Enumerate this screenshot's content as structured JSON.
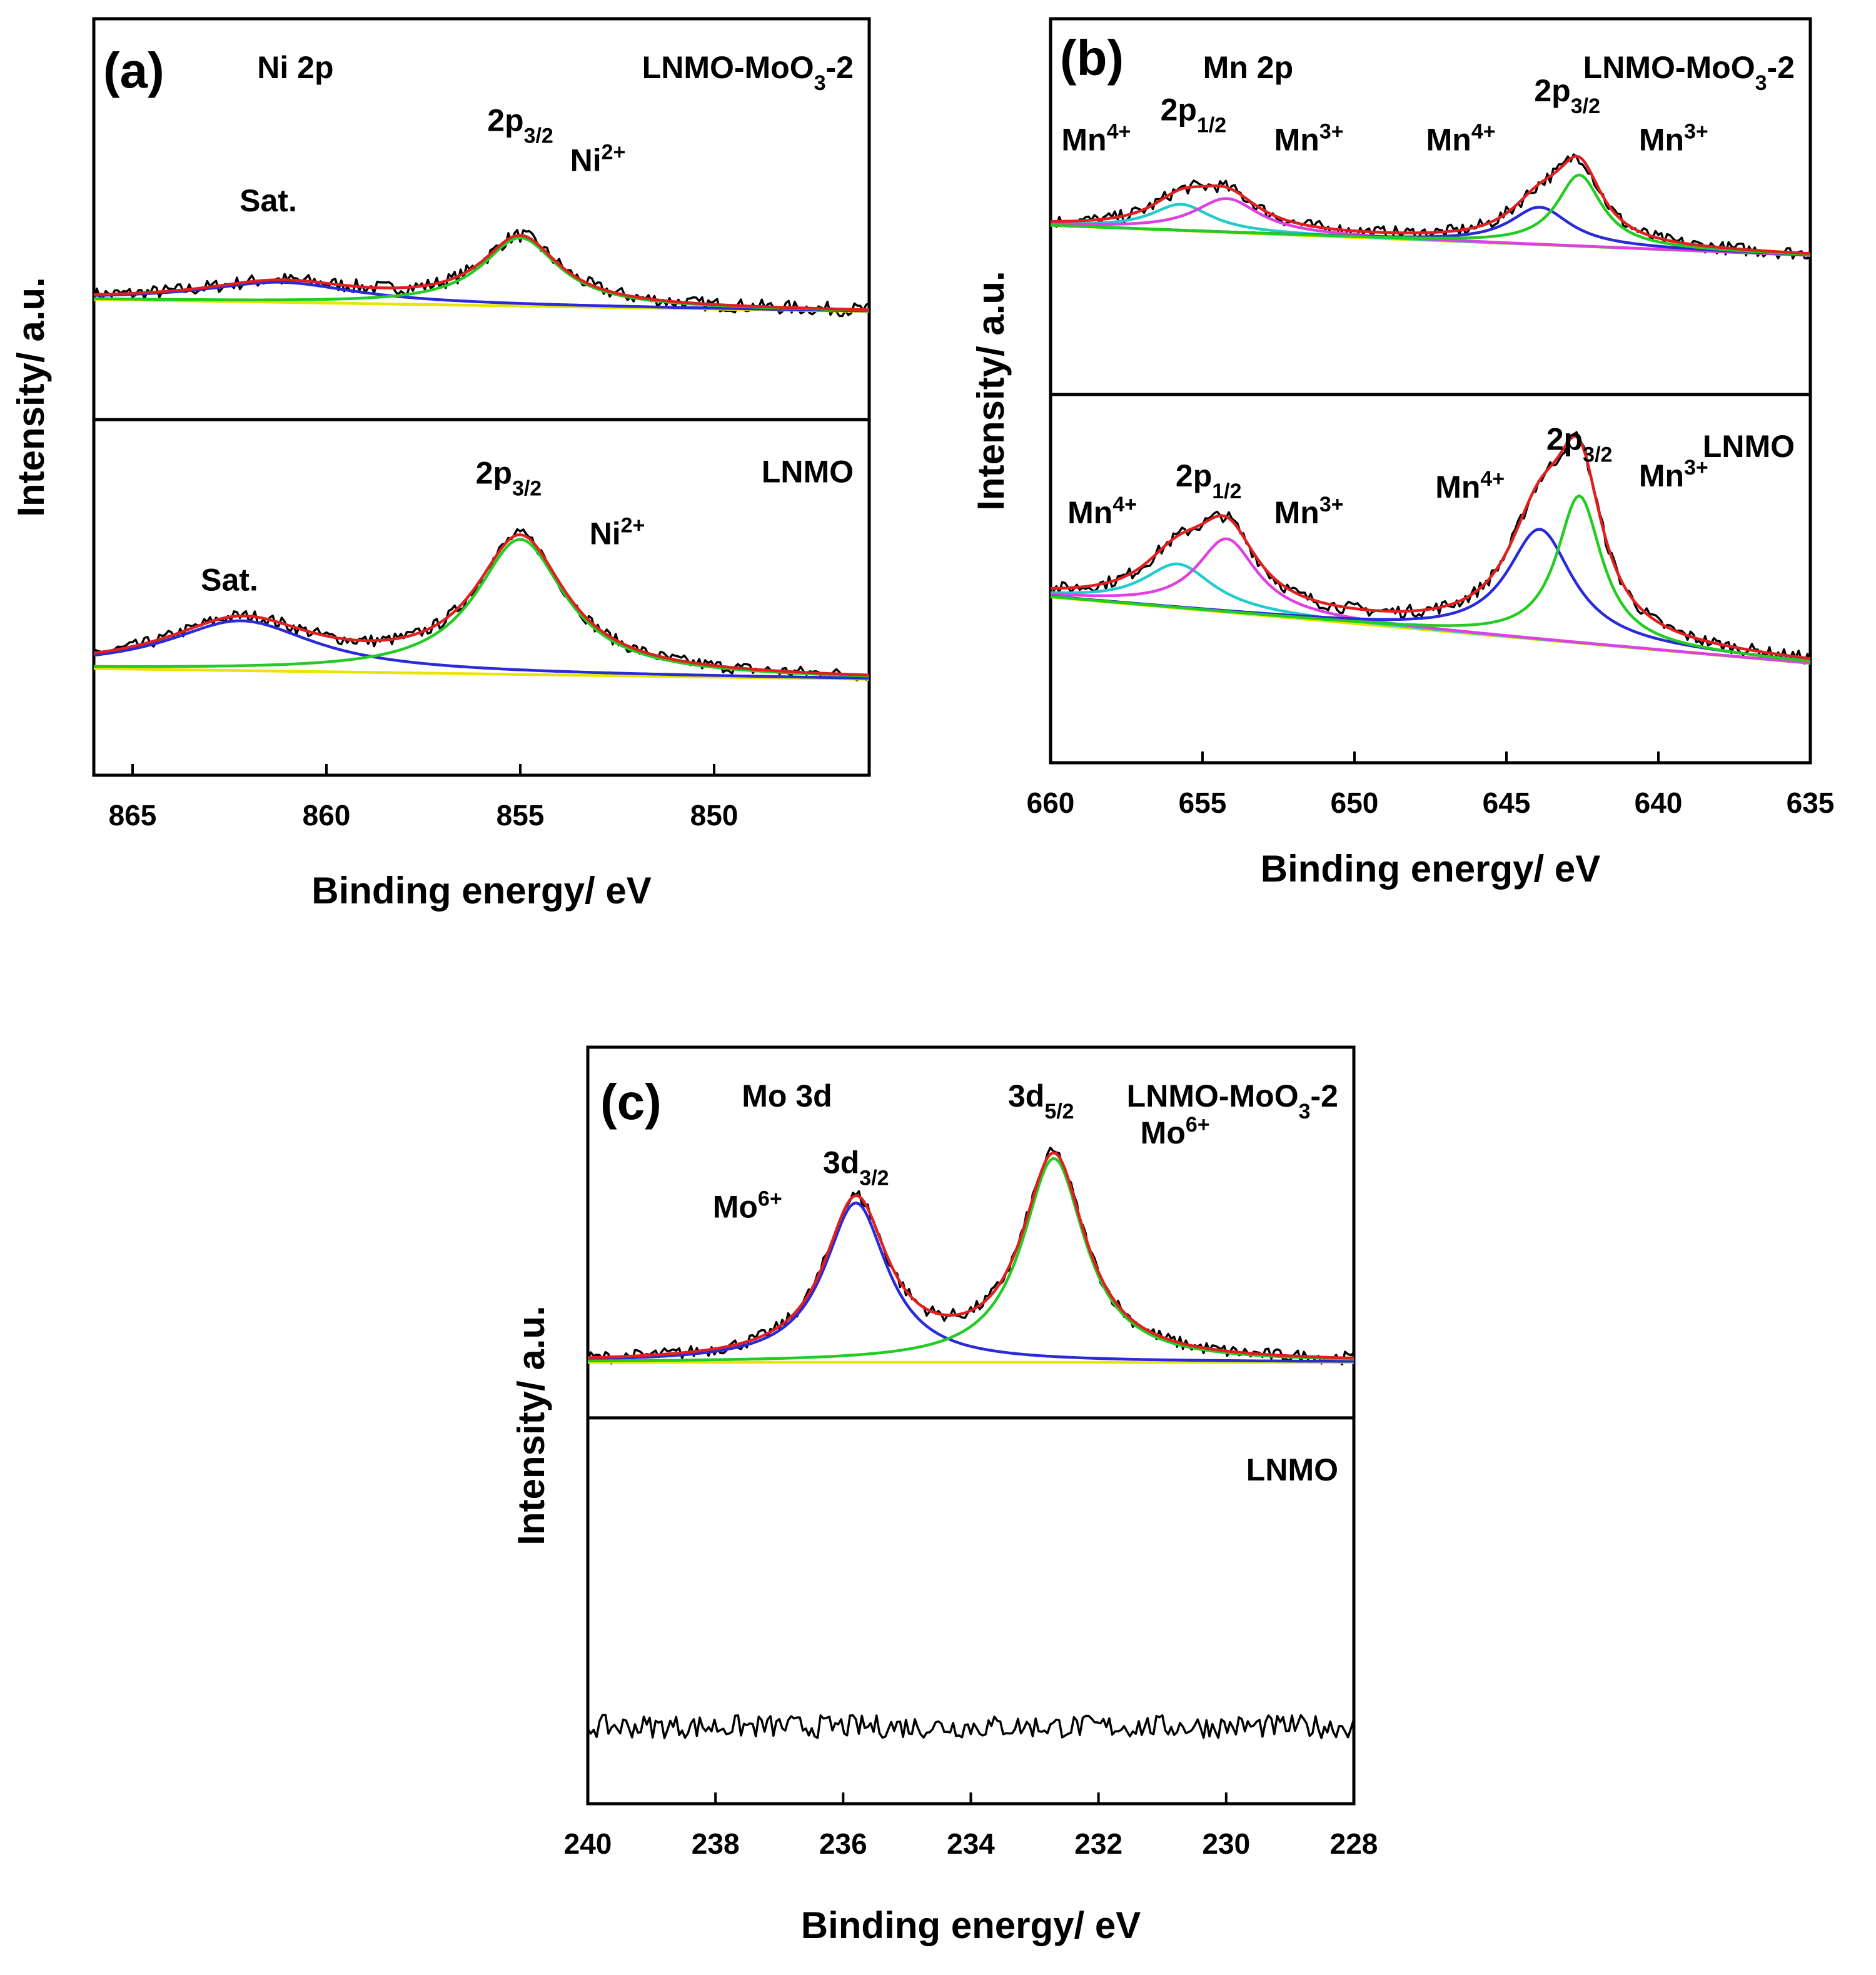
{
  "chart_data": [
    {
      "panel": "(a)",
      "type": "line",
      "title": "Ni 2p",
      "xlabel": "Binding energy/ eV",
      "ylabel": "Intensity/ a.u.",
      "xlim": [
        866,
        846
      ],
      "xticks": [
        865,
        860,
        855,
        850
      ],
      "tick_labels": [
        "865",
        "860",
        "855",
        "850"
      ],
      "subplots": [
        {
          "sample": "LNMO-MoO",
          "sample_sub": "3",
          "sample_suffix": "-2",
          "labels": [
            {
              "text": "Sat.",
              "x": 861.5,
              "y": 0.52
            },
            {
              "text": "2p",
              "sub": "3/2",
              "x": 855,
              "y": 0.72
            },
            {
              "text": "Ni",
              "sup": "2+",
              "x": 853,
              "y": 0.62
            }
          ],
          "background": {
            "start": 0.3,
            "end": 0.27
          },
          "peaks": [
            {
              "name": "Sat.",
              "center": 861.2,
              "height": 0.05,
              "width": 2.4,
              "color": "#2a2ad8"
            },
            {
              "name": "Ni2+",
              "center": 855.0,
              "height": 0.17,
              "width": 1.2,
              "color": "#22cc22"
            }
          ]
        },
        {
          "sample": "LNMO",
          "labels": [
            {
              "text": "Sat.",
              "x": 862.5,
              "y": 0.52
            },
            {
              "text": "2p",
              "sub": "3/2",
              "x": 855.3,
              "y": 0.82
            },
            {
              "text": "Ni",
              "sup": "2+",
              "x": 852.5,
              "y": 0.65
            }
          ],
          "background": {
            "start": 0.3,
            "end": 0.27
          },
          "peaks": [
            {
              "name": "Sat.",
              "center": 862.2,
              "height": 0.14,
              "width": 2.3,
              "color": "#2a2ad8"
            },
            {
              "name": "Ni2+",
              "center": 855.0,
              "height": 0.38,
              "width": 1.4,
              "color": "#22cc22"
            }
          ]
        }
      ]
    },
    {
      "panel": "(b)",
      "type": "line",
      "title": "Mn 2p",
      "xlabel": "Binding energy/ eV",
      "ylabel": "Intensity/ a.u.",
      "xlim": [
        660,
        635
      ],
      "xticks": [
        660,
        655,
        650,
        645,
        640,
        635
      ],
      "tick_labels": [
        "660",
        "655",
        "650",
        "645",
        "640",
        "635"
      ],
      "subplots": [
        {
          "sample": "LNMO-MoO",
          "sample_sub": "3",
          "sample_suffix": "-2",
          "labels": [
            {
              "text": "Mn",
              "sup": "4+",
              "x": 658.5,
              "y": 0.65
            },
            {
              "text": "2p",
              "sub": "1/2",
              "x": 655.3,
              "y": 0.73
            },
            {
              "text": "Mn",
              "sup": "3+",
              "x": 651.5,
              "y": 0.65
            },
            {
              "text": "Mn",
              "sup": "4+",
              "x": 646.5,
              "y": 0.65
            },
            {
              "text": "2p",
              "sub": "3/2",
              "x": 643,
              "y": 0.78
            },
            {
              "text": "Mn",
              "sup": "3+",
              "x": 639.5,
              "y": 0.65
            }
          ],
          "background": {
            "start": 0.45,
            "end": 0.37
          },
          "peaks": [
            {
              "name": "Mn4+ 2p1/2",
              "center": 655.7,
              "height": 0.07,
              "width": 1.2,
              "color": "#22cccc"
            },
            {
              "name": "Mn3+ 2p1/2",
              "center": 654.2,
              "height": 0.09,
              "width": 1.3,
              "color": "#e040e0"
            },
            {
              "name": "Mn4+ 2p3/2",
              "center": 643.9,
              "height": 0.1,
              "width": 1.2,
              "color": "#2a2ad8"
            },
            {
              "name": "Mn3+ 2p3/2",
              "center": 642.6,
              "height": 0.19,
              "width": 0.9,
              "color": "#22cc22"
            }
          ]
        },
        {
          "sample": "LNMO",
          "labels": [
            {
              "text": "Mn",
              "sup": "4+",
              "x": 658.3,
              "y": 0.65
            },
            {
              "text": "2p",
              "sub": "1/2",
              "x": 654.8,
              "y": 0.75
            },
            {
              "text": "Mn",
              "sup": "3+",
              "x": 651.5,
              "y": 0.65
            },
            {
              "text": "Mn",
              "sup": "4+",
              "x": 646.2,
              "y": 0.72
            },
            {
              "text": "2p",
              "sub": "3/2",
              "x": 642.6,
              "y": 0.85
            },
            {
              "text": "Mn",
              "sup": "3+",
              "x": 639.5,
              "y": 0.75
            }
          ],
          "background": {
            "start": 0.45,
            "end": 0.27
          },
          "peaks": [
            {
              "name": "Mn4+ 2p1/2",
              "center": 655.8,
              "height": 0.12,
              "width": 1.4,
              "color": "#22cccc"
            },
            {
              "name": "Mn3+ 2p1/2",
              "center": 654.2,
              "height": 0.2,
              "width": 1.2,
              "color": "#e040e0"
            },
            {
              "name": "Mn4+ 2p3/2",
              "center": 643.9,
              "height": 0.3,
              "width": 1.3,
              "color": "#2a2ad8"
            },
            {
              "name": "Mn3+ 2p3/2",
              "center": 642.6,
              "height": 0.4,
              "width": 0.9,
              "color": "#22cc22"
            }
          ]
        }
      ]
    },
    {
      "panel": "(c)",
      "type": "line",
      "title": "Mo 3d",
      "xlabel": "Binding energy/ eV",
      "ylabel": "Intensity/ a.u.",
      "xlim": [
        240,
        228
      ],
      "xticks": [
        240,
        238,
        236,
        234,
        232,
        230,
        228
      ],
      "tick_labels": [
        "240",
        "238",
        "236",
        "234",
        "232",
        "230",
        "228"
      ],
      "subplots": [
        {
          "sample": "LNMO-MoO",
          "sample_sub": "3",
          "sample_suffix": "-2",
          "labels": [
            {
              "text": "Mo",
              "sup": "6+",
              "x": 237.5,
              "y": 0.54
            },
            {
              "text": "3d",
              "sub": "3/2",
              "x": 235.8,
              "y": 0.66
            },
            {
              "text": "3d",
              "sub": "5/2",
              "x": 232.9,
              "y": 0.84
            },
            {
              "text": "Mo",
              "sup": "6+",
              "x": 230.8,
              "y": 0.74
            }
          ],
          "background": {
            "start": 0.15,
            "end": 0.15
          },
          "peaks": [
            {
              "name": "Mo6+ 3d3/2",
              "center": 235.8,
              "height": 0.43,
              "width": 0.6,
              "color": "#2a2ad8"
            },
            {
              "name": "Mo6+ 3d5/2",
              "center": 232.7,
              "height": 0.55,
              "width": 0.6,
              "color": "#22cc22"
            }
          ]
        },
        {
          "sample": "LNMO",
          "labels": [],
          "background": {
            "start": 0.2,
            "end": 0.2
          },
          "peaks": []
        }
      ]
    }
  ]
}
